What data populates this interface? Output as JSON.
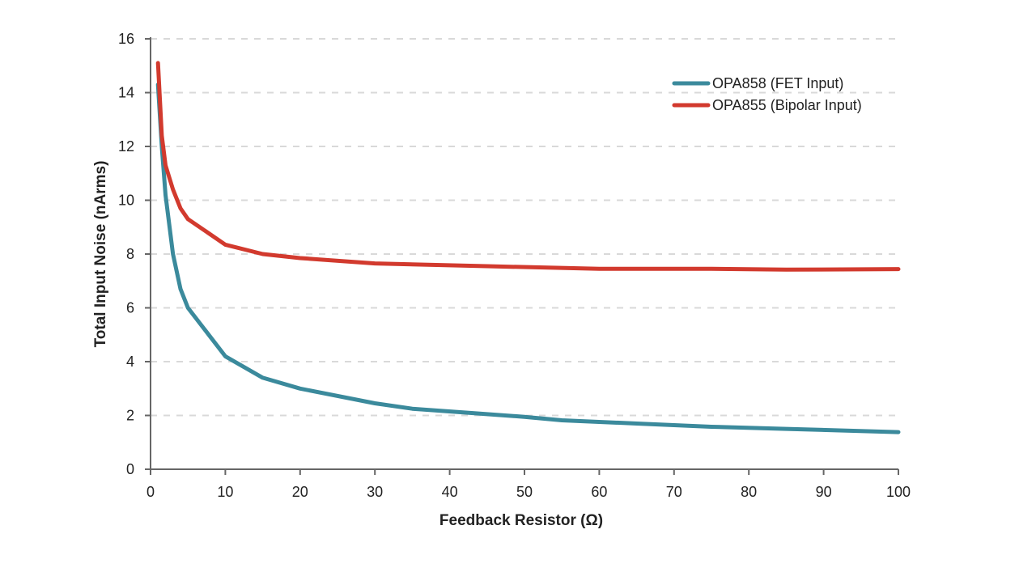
{
  "chart_data": {
    "type": "line",
    "title": "",
    "xlabel": "Feedback Resistor (Ω)",
    "ylabel": "Total Input Noise (nArms)",
    "xlim": [
      0,
      100
    ],
    "ylim": [
      0,
      16
    ],
    "xticks": [
      "0",
      "10",
      "20",
      "30",
      "40",
      "50",
      "60",
      "70",
      "80",
      "90",
      "100"
    ],
    "yticks": [
      "0",
      "2",
      "4",
      "6",
      "8",
      "10",
      "12",
      "14",
      "16"
    ],
    "grid": "horizontal dashed",
    "legend_position": "top-right",
    "series": [
      {
        "name": "OPA858 (FET Input)",
        "color": "#3b8a9c",
        "x": [
          1,
          1.5,
          2,
          3,
          4,
          5,
          10,
          15,
          20,
          30,
          35,
          50,
          55,
          65,
          75,
          85,
          100
        ],
        "y": [
          14.3,
          12.0,
          10.2,
          8.0,
          6.7,
          6.0,
          4.2,
          3.4,
          3.0,
          2.45,
          2.25,
          1.95,
          1.82,
          1.7,
          1.58,
          1.5,
          1.38
        ]
      },
      {
        "name": "OPA855 (Bipolar Input)",
        "color": "#d23a2e",
        "x": [
          1,
          1.5,
          2,
          3,
          4,
          5,
          10,
          15,
          20,
          30,
          45,
          60,
          75,
          85,
          100
        ],
        "y": [
          15.1,
          12.4,
          11.3,
          10.4,
          9.7,
          9.3,
          8.35,
          8.0,
          7.85,
          7.65,
          7.55,
          7.45,
          7.45,
          7.42,
          7.44
        ]
      }
    ]
  }
}
